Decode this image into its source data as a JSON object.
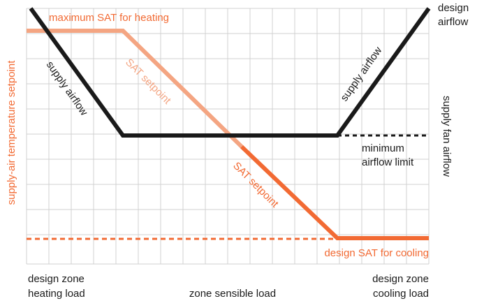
{
  "labels": {
    "max_sat_heating": "maximum SAT for heating",
    "sat_setpoint_upper": "SAT setpoint",
    "sat_setpoint_lower": "SAT setpoint",
    "supply_airflow_left": "supply airflow",
    "supply_airflow_right": "supply airflow",
    "design_airflow_line1": "design",
    "design_airflow_line2": "airflow",
    "minimum_airflow_limit_line1": "minimum",
    "minimum_airflow_limit_line2": "airflow limit",
    "design_sat_cooling": "design SAT for cooling",
    "left_axis": "supply-air temperature setpoint",
    "right_axis": "supply fan airflow",
    "x_left_line1": "design zone",
    "x_left_line2": "heating load",
    "x_center": "zone sensible load",
    "x_right_line1": "design zone",
    "x_right_line2": "cooling load"
  },
  "colors": {
    "sat_light": "#f4a582",
    "sat_dark": "#f26a33",
    "sat_label": "#f26a33",
    "airflow": "#1a1a1a",
    "grid": "#d0d0d0",
    "background": "#ffffff"
  }
}
